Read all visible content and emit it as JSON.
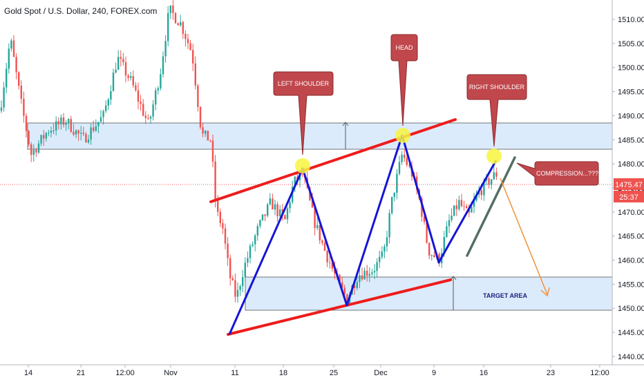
{
  "chart_data": {
    "type": "candlestick",
    "title": "Gold Spot / U.S. Dollar, 240, FOREX.com",
    "ylim": [
      1439,
      1515
    ],
    "y_ticks": [
      "1510.00",
      "1505.00",
      "1500.00",
      "1495.00",
      "1490.00",
      "1485.00",
      "1480.00",
      "1475.00",
      "1470.00",
      "1465.00",
      "1460.00",
      "1455.00",
      "1450.00",
      "1445.00",
      "1440.00"
    ],
    "x_ticks": [
      "14",
      "21",
      "12:00",
      "Nov",
      "11",
      "18",
      "25",
      "Dec",
      "9",
      "16",
      "23",
      "12:00"
    ],
    "current_price": "1475.47",
    "countdown": "25:37",
    "callouts": {
      "left_shoulder": "LEFT SHOULDER",
      "head": "HEAD",
      "right_shoulder": "RIGHT SHOULDER",
      "compression": "COMPRESSION...???"
    },
    "target_label": "TARGET AREA",
    "colors": {
      "up": "#26a69a",
      "down": "#ef5350",
      "zone_fill": "#dcebfb",
      "trend_red": "#ee1c1c",
      "pattern_blue": "#1515d6",
      "grey_line": "#546e63",
      "projection": "#f0913a",
      "marker": "#f7f43e",
      "callout": "#c0474c",
      "price_tag": "#ef5350"
    }
  }
}
